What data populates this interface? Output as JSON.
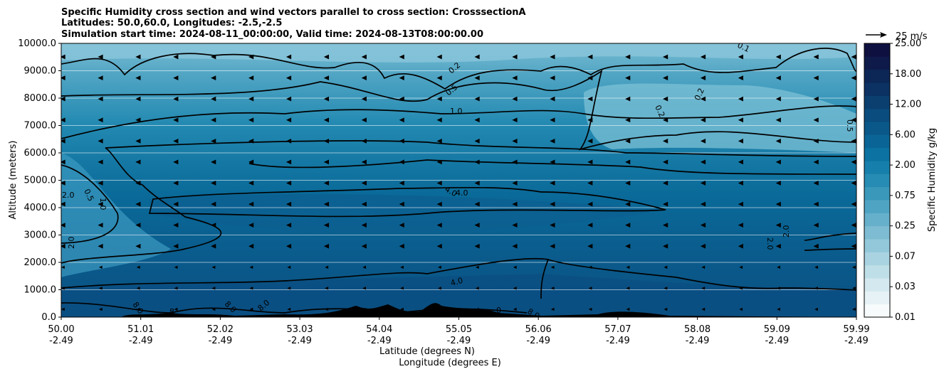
{
  "chart_data": {
    "type": "heatmap",
    "title_lines": [
      "Specific Humidity cross section and wind vectors parallel to cross section: CrosssectionA",
      "Latitudes: 50.0,60.0, Longitudes: -2.5,-2.5",
      "Simulation start time: 2024-08-11_00:00:00, Valid time: 2024-08-13T08:00:00.00"
    ],
    "ylabel": "Altitude (meters)",
    "xlabel_lines": [
      "Latitude (degrees N)",
      "Longitude (degrees E)"
    ],
    "colorbar_label": "Specific Humidity g/kg",
    "ylim": [
      0,
      10000
    ],
    "y_ticks": [
      "0.0",
      "1000.0",
      "2000.0",
      "3000.0",
      "4000.0",
      "5000.0",
      "6000.0",
      "7000.0",
      "8000.0",
      "9000.0",
      "10000.0"
    ],
    "x_ticks": [
      {
        "lat": "50.00",
        "lon": "-2.49"
      },
      {
        "lat": "51.01",
        "lon": "-2.49"
      },
      {
        "lat": "52.02",
        "lon": "-2.49"
      },
      {
        "lat": "53.03",
        "lon": "-2.49"
      },
      {
        "lat": "54.04",
        "lon": "-2.49"
      },
      {
        "lat": "55.05",
        "lon": "-2.49"
      },
      {
        "lat": "56.06",
        "lon": "-2.49"
      },
      {
        "lat": "57.07",
        "lon": "-2.49"
      },
      {
        "lat": "58.08",
        "lon": "-2.49"
      },
      {
        "lat": "59.09",
        "lon": "-2.49"
      },
      {
        "lat": "59.99",
        "lon": "-2.49"
      }
    ],
    "colorbar_ticks": [
      "0.01",
      "0.03",
      "0.07",
      "0.25",
      "0.75",
      "2.00",
      "6.00",
      "12.00",
      "18.00",
      "25.00"
    ],
    "colorbar_colors": [
      "#f7fbfc",
      "#e6f2f5",
      "#d3e9ef",
      "#bfdfe8",
      "#a9d3e1",
      "#93c8da",
      "#7dbcd2",
      "#66b0cb",
      "#4fa4c3",
      "#3a98bb",
      "#278cb3",
      "#167fab",
      "#0b72a1",
      "#0a6596",
      "#0a588a",
      "#0a4c7d",
      "#0a3f70",
      "#0b3263",
      "#0c2656",
      "#0d1a4a",
      "#0e1140"
    ],
    "contour_labels": [
      "0.1",
      "0.2",
      "0.5",
      "1.0",
      "0.2",
      "0.2",
      "0.5",
      "4.0",
      "4.0",
      "2.0",
      "2.0",
      "0.5",
      "1.0",
      "2.0",
      "2.0",
      "4.0",
      "8.0",
      "8.0",
      "8.0",
      "8",
      "8.0",
      "0"
    ],
    "wind_reference": "25 m/s",
    "grid": "horizontal"
  }
}
